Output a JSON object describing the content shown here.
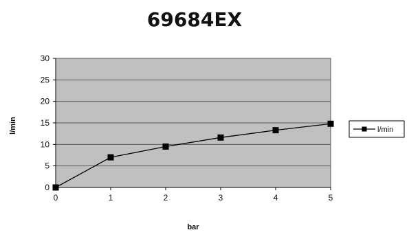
{
  "colors": {
    "plot_background": "#c0c0c0",
    "gridline": "#5a5a5a",
    "series": "#000000",
    "text": "#111111"
  },
  "chart_data": {
    "type": "line",
    "title": "69684EX",
    "xlabel": "bar",
    "ylabel": "l/min",
    "x": [
      0,
      1,
      2,
      3,
      4,
      5
    ],
    "xlim": [
      0,
      5
    ],
    "ylim": [
      0,
      30
    ],
    "x_ticks": [
      "0",
      "1",
      "2",
      "3",
      "4",
      "5"
    ],
    "y_ticks": [
      "0",
      "5",
      "10",
      "15",
      "20",
      "25",
      "30"
    ],
    "grid": true,
    "legend_position": "right",
    "series": [
      {
        "name": "l/min",
        "marker": "square",
        "values": [
          0,
          7.0,
          9.5,
          11.6,
          13.3,
          14.8
        ]
      }
    ]
  }
}
